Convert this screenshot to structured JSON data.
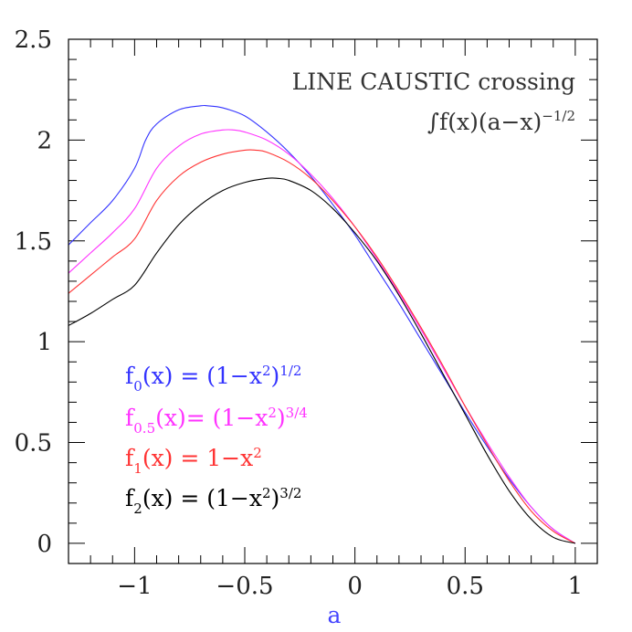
{
  "chart_data": {
    "type": "line",
    "title": "",
    "xlabel": "a",
    "ylabel": "",
    "xlim": [
      -1.3,
      1.1
    ],
    "ylim": [
      -0.1,
      2.5
    ],
    "x_ticks": [
      -1,
      -0.5,
      0,
      0.5,
      1
    ],
    "x_tick_labels": [
      "−1",
      "−0.5",
      "0",
      "0.5",
      "1"
    ],
    "y_ticks": [
      0,
      0.5,
      1,
      1.5,
      2,
      2.5
    ],
    "y_tick_labels": [
      "0",
      "0.5",
      "1",
      "1.5",
      "2",
      "2.5"
    ],
    "grid": false,
    "annotations": {
      "crossing": "LINE CAUSTIC crossing",
      "integral_pre": "∫f(x)(a−x)",
      "integral_exp": "−1/2"
    },
    "legend": {
      "placement": "lower-left",
      "entries": [
        {
          "fsub": "0",
          "mid": "(x)  =  (1−x",
          "sq": "2",
          "paren": ")",
          "exp": "1/2",
          "color": "#3333ff"
        },
        {
          "fsub": "0.5",
          "mid": "(x)=  (1−x",
          "sq": "2",
          "paren": ")",
          "exp": "3/4",
          "color": "#ff33ff"
        },
        {
          "fsub": "1",
          "mid": "(x)  =  1−x",
          "sq": "2",
          "paren": "",
          "exp": "",
          "color": "#ff3333"
        },
        {
          "fsub": "2",
          "mid": "(x)  =  (1−x",
          "sq": "2",
          "paren": ")",
          "exp": "3/2",
          "color": "#000000"
        }
      ]
    },
    "series": [
      {
        "color": "#3333ff",
        "x": [
          -1.3,
          -1.2,
          -1.1,
          -1.0,
          -0.95,
          -0.9,
          -0.8,
          -0.7,
          -0.67,
          -0.6,
          -0.5,
          -0.4,
          -0.3,
          -0.2,
          -0.1,
          0,
          0.1,
          0.2,
          0.3,
          0.4,
          0.5,
          0.6,
          0.7,
          0.8,
          0.9,
          1.0
        ],
        "y": [
          1.48,
          1.59,
          1.7,
          1.86,
          2.0,
          2.08,
          2.15,
          2.17,
          2.17,
          2.16,
          2.12,
          2.04,
          1.94,
          1.82,
          1.68,
          1.53,
          1.36,
          1.19,
          1.01,
          0.83,
          0.65,
          0.48,
          0.32,
          0.18,
          0.07,
          0.0
        ]
      },
      {
        "color": "#ff33ff",
        "x": [
          -1.3,
          -1.2,
          -1.1,
          -1.0,
          -0.9,
          -0.8,
          -0.7,
          -0.6,
          -0.55,
          -0.5,
          -0.4,
          -0.3,
          -0.2,
          -0.1,
          0,
          0.1,
          0.2,
          0.3,
          0.4,
          0.5,
          0.6,
          0.7,
          0.8,
          0.9,
          1.0
        ],
        "y": [
          1.34,
          1.44,
          1.54,
          1.66,
          1.86,
          1.97,
          2.03,
          2.05,
          2.05,
          2.04,
          2.0,
          1.93,
          1.83,
          1.71,
          1.57,
          1.41,
          1.24,
          1.06,
          0.87,
          0.68,
          0.5,
          0.33,
          0.18,
          0.07,
          0.0
        ]
      },
      {
        "color": "#ff3333",
        "x": [
          -1.3,
          -1.2,
          -1.1,
          -1.0,
          -0.9,
          -0.8,
          -0.7,
          -0.6,
          -0.5,
          -0.45,
          -0.4,
          -0.3,
          -0.2,
          -0.1,
          0,
          0.1,
          0.2,
          0.3,
          0.4,
          0.5,
          0.6,
          0.7,
          0.8,
          0.9,
          1.0
        ],
        "y": [
          1.24,
          1.33,
          1.42,
          1.51,
          1.7,
          1.82,
          1.89,
          1.93,
          1.95,
          1.95,
          1.94,
          1.89,
          1.81,
          1.7,
          1.57,
          1.42,
          1.25,
          1.07,
          0.88,
          0.68,
          0.49,
          0.31,
          0.16,
          0.06,
          0.0
        ]
      },
      {
        "color": "#000000",
        "x": [
          -1.3,
          -1.2,
          -1.1,
          -1.0,
          -0.9,
          -0.8,
          -0.7,
          -0.6,
          -0.5,
          -0.4,
          -0.35,
          -0.3,
          -0.2,
          -0.1,
          0,
          0.1,
          0.2,
          0.3,
          0.4,
          0.5,
          0.6,
          0.7,
          0.8,
          0.9,
          1.0
        ],
        "y": [
          1.08,
          1.14,
          1.21,
          1.28,
          1.44,
          1.58,
          1.68,
          1.75,
          1.79,
          1.81,
          1.81,
          1.8,
          1.75,
          1.66,
          1.54,
          1.4,
          1.23,
          1.04,
          0.84,
          0.64,
          0.44,
          0.26,
          0.12,
          0.03,
          0.0
        ]
      }
    ]
  }
}
